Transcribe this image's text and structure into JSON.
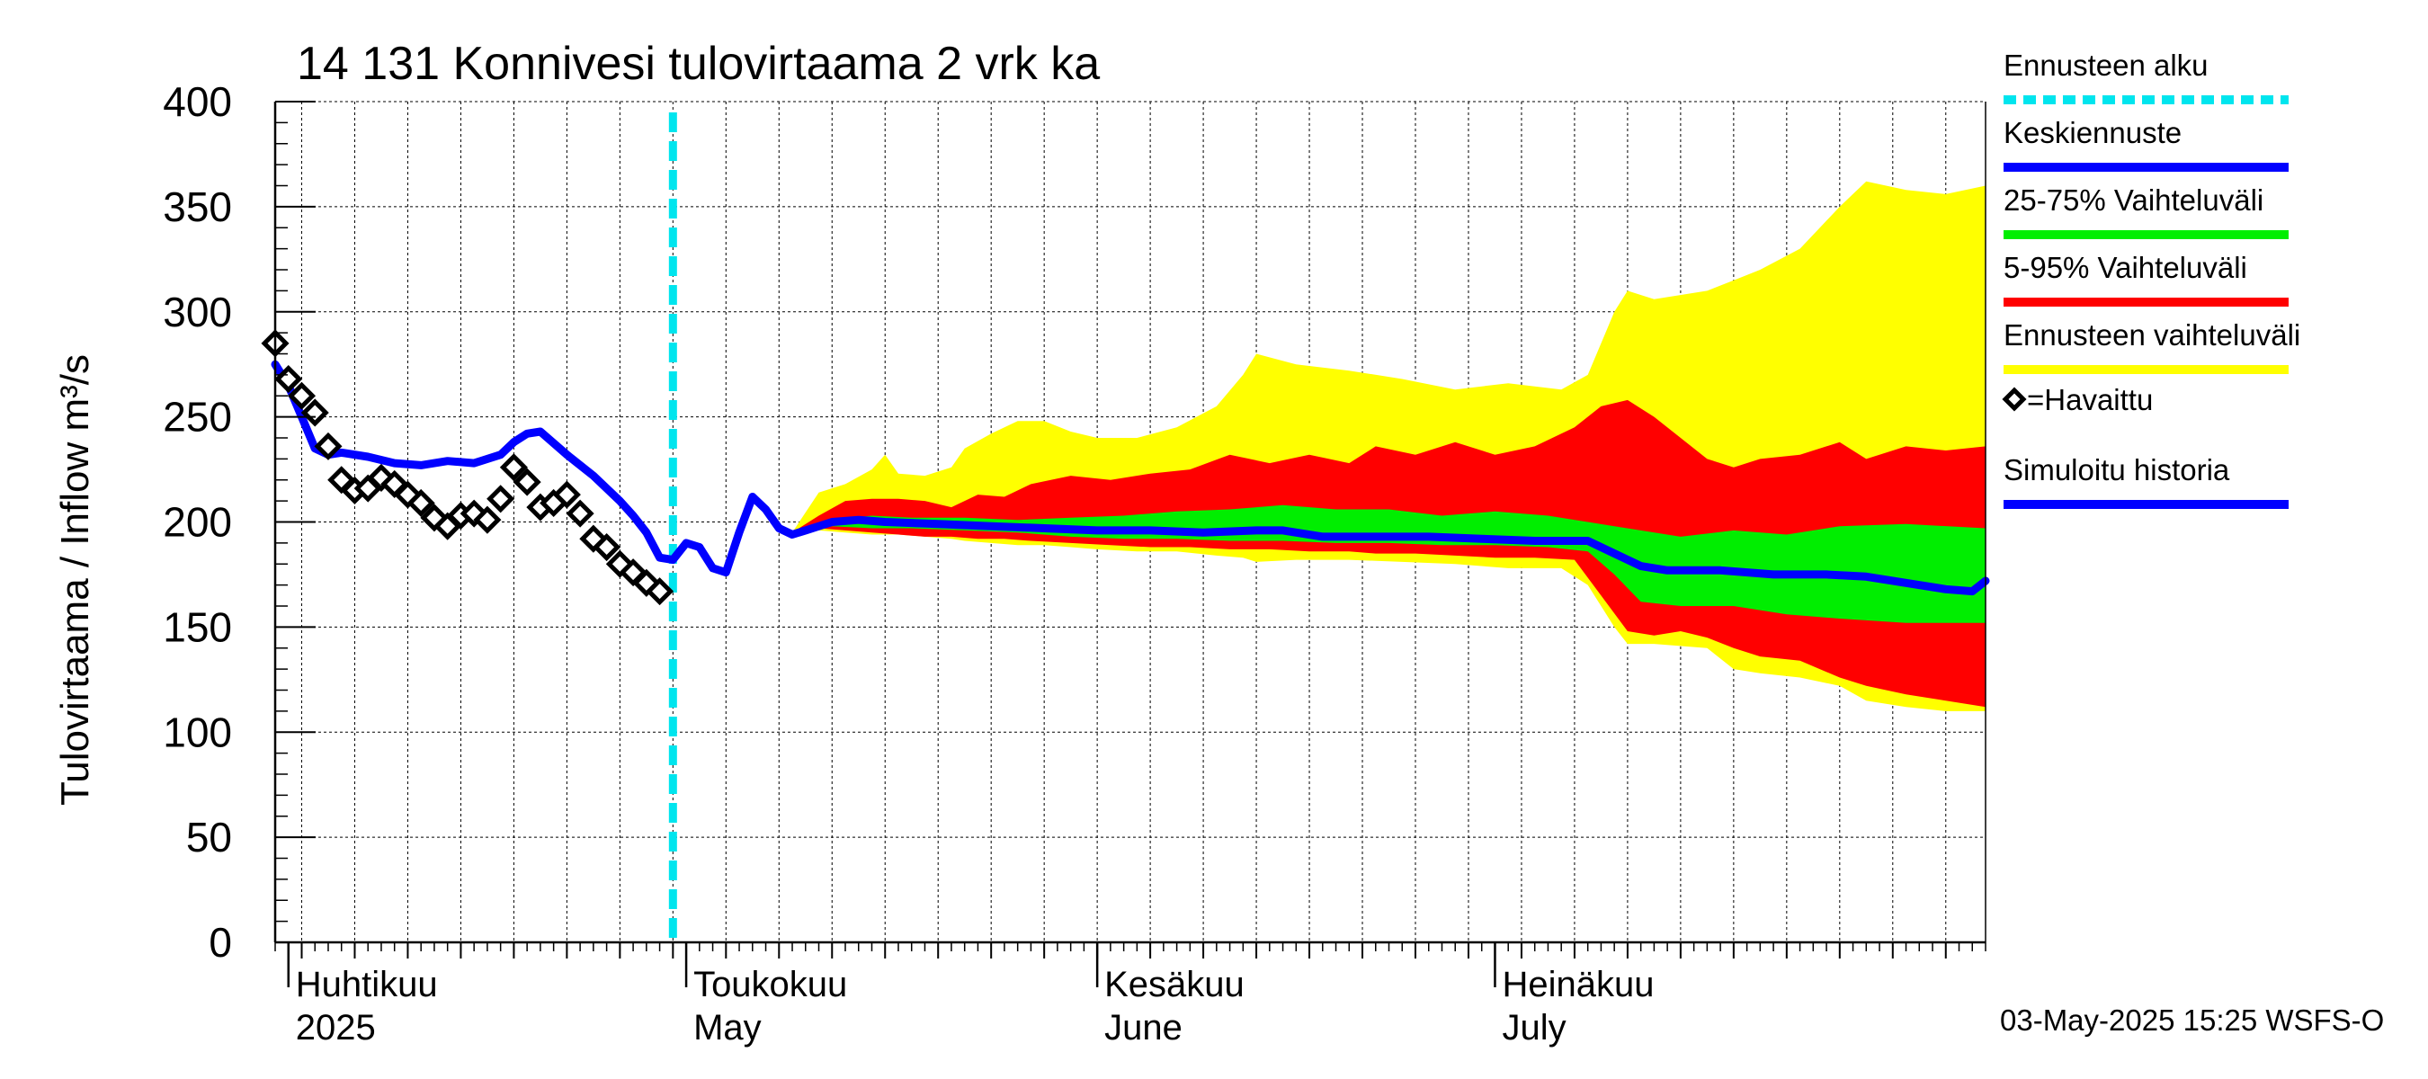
{
  "chart_data": {
    "type": "line",
    "title": "14 131 Konnivesi tulovirtaama 2 vrk ka",
    "ylabel": "Tulovirtaama / Inflow    m³/s",
    "ylim": [
      0,
      400
    ],
    "y_ticks": [
      0,
      50,
      100,
      150,
      200,
      250,
      300,
      350,
      400
    ],
    "xlim": [
      "2025-03-31",
      "2025-08-07"
    ],
    "grid": true,
    "legend_placement": "right",
    "month_labels": [
      {
        "date": "2025-04-01",
        "fi": "Huhtikuu",
        "en": "2025"
      },
      {
        "date": "2025-05-01",
        "fi": "Toukokuu",
        "en": "May"
      },
      {
        "date": "2025-06-01",
        "fi": "Kesäkuu",
        "en": "June"
      },
      {
        "date": "2025-07-01",
        "fi": "Heinäkuu",
        "en": "July"
      }
    ],
    "forecast_start": "2025-04-30",
    "footer": "03-May-2025 15:25 WSFS-O",
    "legend": [
      {
        "label": "Ennusteen alku",
        "color": "#00e5ee",
        "style": "dashed"
      },
      {
        "label": "Keskiennuste",
        "color": "#0000ff",
        "style": "line"
      },
      {
        "label": "25-75% Vaihteluväli",
        "color": "#00ee00",
        "style": "line"
      },
      {
        "label": "5-95% Vaihteluväli",
        "color": "#ff0000",
        "style": "line"
      },
      {
        "label": "Ennusteen vaihteluväli",
        "color": "#ffff00",
        "style": "line"
      },
      {
        "label": "=Havaittu",
        "color": "#000000",
        "style": "diamond"
      },
      {
        "label": "Simuloitu historia",
        "color": "#0000ff",
        "style": "line"
      }
    ],
    "colors": {
      "forecast_range": "#ffff00",
      "p5_95": "#ff0000",
      "p25_75": "#00ee00",
      "median": "#0000ff",
      "forecast_start": "#00e5ee",
      "observed": "#000000"
    },
    "series": [
      {
        "name": "Simuloitu historia",
        "points": [
          [
            "2025-03-31",
            275
          ],
          [
            "2025-04-01",
            265
          ],
          [
            "2025-04-02",
            250
          ],
          [
            "2025-04-03",
            235
          ],
          [
            "2025-04-04",
            232
          ],
          [
            "2025-04-05",
            233
          ],
          [
            "2025-04-07",
            231
          ],
          [
            "2025-04-09",
            228
          ],
          [
            "2025-04-11",
            227
          ],
          [
            "2025-04-13",
            229
          ],
          [
            "2025-04-15",
            228
          ],
          [
            "2025-04-17",
            232
          ],
          [
            "2025-04-18",
            238
          ],
          [
            "2025-04-19",
            242
          ],
          [
            "2025-04-20",
            243
          ],
          [
            "2025-04-22",
            232
          ],
          [
            "2025-04-24",
            222
          ],
          [
            "2025-04-25",
            216
          ],
          [
            "2025-04-26",
            210
          ],
          [
            "2025-04-27",
            203
          ],
          [
            "2025-04-28",
            195
          ],
          [
            "2025-04-29",
            183
          ],
          [
            "2025-04-30",
            182
          ],
          [
            "2025-05-01",
            190
          ],
          [
            "2025-05-02",
            188
          ]
        ]
      },
      {
        "name": "Keskiennuste",
        "points": [
          [
            "2025-05-02",
            188
          ],
          [
            "2025-05-03",
            178
          ],
          [
            "2025-05-04",
            176
          ],
          [
            "2025-05-05",
            195
          ],
          [
            "2025-05-06",
            212
          ],
          [
            "2025-05-07",
            206
          ],
          [
            "2025-05-08",
            197
          ],
          [
            "2025-05-09",
            194
          ],
          [
            "2025-05-10",
            196
          ],
          [
            "2025-05-12",
            200
          ],
          [
            "2025-05-14",
            201
          ],
          [
            "2025-05-16",
            200
          ],
          [
            "2025-05-20",
            199
          ],
          [
            "2025-05-24",
            198
          ],
          [
            "2025-05-28",
            197
          ],
          [
            "2025-06-01",
            196
          ],
          [
            "2025-06-05",
            196
          ],
          [
            "2025-06-09",
            195
          ],
          [
            "2025-06-13",
            196
          ],
          [
            "2025-06-15",
            196
          ],
          [
            "2025-06-18",
            193
          ],
          [
            "2025-06-22",
            193
          ],
          [
            "2025-06-26",
            193
          ],
          [
            "2025-06-30",
            192
          ],
          [
            "2025-07-04",
            191
          ],
          [
            "2025-07-08",
            191
          ],
          [
            "2025-07-10",
            185
          ],
          [
            "2025-07-12",
            179
          ],
          [
            "2025-07-14",
            177
          ],
          [
            "2025-07-18",
            177
          ],
          [
            "2025-07-22",
            175
          ],
          [
            "2025-07-26",
            175
          ],
          [
            "2025-07-29",
            174
          ],
          [
            "2025-08-01",
            171
          ],
          [
            "2025-08-04",
            168
          ],
          [
            "2025-08-06",
            167
          ],
          [
            "2025-08-07",
            172
          ]
        ]
      }
    ],
    "bands": [
      {
        "name": "Ennusteen vaihteluväli",
        "points": [
          [
            "2025-05-09",
            195,
            194
          ],
          [
            "2025-05-11",
            214,
            196
          ],
          [
            "2025-05-13",
            218,
            195
          ],
          [
            "2025-05-15",
            225,
            194
          ],
          [
            "2025-05-16",
            232,
            194
          ],
          [
            "2025-05-17",
            223,
            194
          ],
          [
            "2025-05-19",
            222,
            193
          ],
          [
            "2025-05-21",
            226,
            192
          ],
          [
            "2025-05-22",
            235,
            191
          ],
          [
            "2025-05-24",
            242,
            190
          ],
          [
            "2025-05-26",
            248,
            189
          ],
          [
            "2025-05-28",
            248,
            189
          ],
          [
            "2025-05-30",
            243,
            188
          ],
          [
            "2025-06-01",
            240,
            187
          ],
          [
            "2025-06-04",
            240,
            186
          ],
          [
            "2025-06-07",
            245,
            186
          ],
          [
            "2025-06-10",
            255,
            184
          ],
          [
            "2025-06-12",
            270,
            183
          ],
          [
            "2025-06-13",
            280,
            181
          ],
          [
            "2025-06-16",
            275,
            182
          ],
          [
            "2025-06-20",
            272,
            182
          ],
          [
            "2025-06-24",
            268,
            181
          ],
          [
            "2025-06-28",
            263,
            180
          ],
          [
            "2025-07-02",
            266,
            178
          ],
          [
            "2025-07-06",
            263,
            178
          ],
          [
            "2025-07-08",
            270,
            170
          ],
          [
            "2025-07-10",
            300,
            150
          ],
          [
            "2025-07-11",
            310,
            142
          ],
          [
            "2025-07-13",
            306,
            142
          ],
          [
            "2025-07-17",
            310,
            140
          ],
          [
            "2025-07-19",
            315,
            130
          ],
          [
            "2025-07-21",
            320,
            128
          ],
          [
            "2025-07-24",
            330,
            126
          ],
          [
            "2025-07-27",
            350,
            122
          ],
          [
            "2025-07-29",
            362,
            115
          ],
          [
            "2025-08-01",
            358,
            112
          ],
          [
            "2025-08-04",
            356,
            110
          ],
          [
            "2025-08-07",
            360,
            110
          ]
        ]
      },
      {
        "name": "5-95% Vaihteluväli",
        "points": [
          [
            "2025-05-09",
            195,
            194
          ],
          [
            "2025-05-11",
            203,
            197
          ],
          [
            "2025-05-13",
            210,
            196
          ],
          [
            "2025-05-15",
            211,
            195
          ],
          [
            "2025-05-17",
            211,
            194
          ],
          [
            "2025-05-19",
            210,
            193
          ],
          [
            "2025-05-21",
            207,
            193
          ],
          [
            "2025-05-23",
            213,
            192
          ],
          [
            "2025-05-25",
            212,
            192
          ],
          [
            "2025-05-27",
            218,
            191
          ],
          [
            "2025-05-30",
            222,
            190
          ],
          [
            "2025-06-02",
            220,
            189
          ],
          [
            "2025-06-05",
            223,
            188
          ],
          [
            "2025-06-08",
            225,
            188
          ],
          [
            "2025-06-11",
            232,
            187
          ],
          [
            "2025-06-14",
            228,
            187
          ],
          [
            "2025-06-17",
            232,
            186
          ],
          [
            "2025-06-20",
            228,
            186
          ],
          [
            "2025-06-22",
            236,
            185
          ],
          [
            "2025-06-25",
            232,
            185
          ],
          [
            "2025-06-28",
            238,
            184
          ],
          [
            "2025-07-01",
            232,
            183
          ],
          [
            "2025-07-04",
            236,
            183
          ],
          [
            "2025-07-07",
            245,
            182
          ],
          [
            "2025-07-09",
            255,
            165
          ],
          [
            "2025-07-11",
            258,
            148
          ],
          [
            "2025-07-13",
            250,
            146
          ],
          [
            "2025-07-15",
            240,
            148
          ],
          [
            "2025-07-17",
            230,
            145
          ],
          [
            "2025-07-19",
            226,
            140
          ],
          [
            "2025-07-21",
            230,
            136
          ],
          [
            "2025-07-24",
            232,
            134
          ],
          [
            "2025-07-27",
            238,
            126
          ],
          [
            "2025-07-29",
            230,
            122
          ],
          [
            "2025-08-01",
            236,
            118
          ],
          [
            "2025-08-04",
            234,
            115
          ],
          [
            "2025-08-07",
            236,
            112
          ]
        ]
      },
      {
        "name": "25-75% Vaihteluväli",
        "points": [
          [
            "2025-05-09",
            195,
            194
          ],
          [
            "2025-05-12",
            201,
            198
          ],
          [
            "2025-05-15",
            203,
            197
          ],
          [
            "2025-05-18",
            202,
            197
          ],
          [
            "2025-05-22",
            202,
            196
          ],
          [
            "2025-05-26",
            201,
            195
          ],
          [
            "2025-05-30",
            202,
            193
          ],
          [
            "2025-06-03",
            203,
            192
          ],
          [
            "2025-06-07",
            205,
            192
          ],
          [
            "2025-06-11",
            206,
            191
          ],
          [
            "2025-06-15",
            208,
            191
          ],
          [
            "2025-06-19",
            206,
            190
          ],
          [
            "2025-06-23",
            206,
            190
          ],
          [
            "2025-06-27",
            203,
            189
          ],
          [
            "2025-07-01",
            205,
            189
          ],
          [
            "2025-07-05",
            203,
            188
          ],
          [
            "2025-07-08",
            200,
            186
          ],
          [
            "2025-07-10",
            198,
            175
          ],
          [
            "2025-07-12",
            196,
            162
          ],
          [
            "2025-07-15",
            193,
            160
          ],
          [
            "2025-07-19",
            196,
            160
          ],
          [
            "2025-07-23",
            194,
            156
          ],
          [
            "2025-07-27",
            198,
            154
          ],
          [
            "2025-08-01",
            199,
            152
          ],
          [
            "2025-08-07",
            197,
            152
          ]
        ]
      }
    ],
    "observed": {
      "name": "=Havaittu",
      "points": [
        [
          "2025-03-31",
          285
        ],
        [
          "2025-04-01",
          268
        ],
        [
          "2025-04-02",
          260
        ],
        [
          "2025-04-03",
          252
        ],
        [
          "2025-04-04",
          236
        ],
        [
          "2025-04-05",
          220
        ],
        [
          "2025-04-06",
          215
        ],
        [
          "2025-04-07",
          216
        ],
        [
          "2025-04-08",
          221
        ],
        [
          "2025-04-09",
          218
        ],
        [
          "2025-04-10",
          213
        ],
        [
          "2025-04-11",
          209
        ],
        [
          "2025-04-12",
          202
        ],
        [
          "2025-04-13",
          198
        ],
        [
          "2025-04-14",
          203
        ],
        [
          "2025-04-15",
          204
        ],
        [
          "2025-04-16",
          201
        ],
        [
          "2025-04-17",
          211
        ],
        [
          "2025-04-18",
          226
        ],
        [
          "2025-04-19",
          219
        ],
        [
          "2025-04-20",
          207
        ],
        [
          "2025-04-21",
          209
        ],
        [
          "2025-04-22",
          213
        ],
        [
          "2025-04-23",
          204
        ],
        [
          "2025-04-24",
          192
        ],
        [
          "2025-04-25",
          188
        ],
        [
          "2025-04-26",
          180
        ],
        [
          "2025-04-27",
          176
        ],
        [
          "2025-04-28",
          171
        ],
        [
          "2025-04-29",
          167
        ]
      ]
    }
  }
}
